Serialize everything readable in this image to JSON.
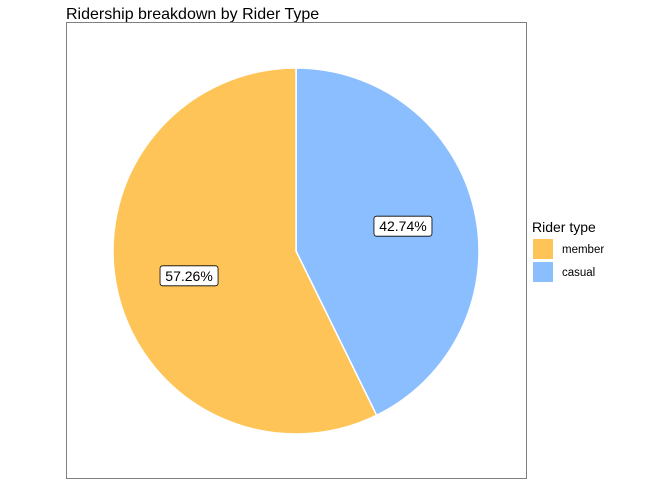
{
  "chart_data": {
    "type": "pie",
    "title": "Ridership breakdown by Rider Type",
    "legend": {
      "title": "Rider type",
      "placement": "right"
    },
    "slices": [
      {
        "label": "casual",
        "value": 42.74,
        "display": "42.74%",
        "color": "#8ABEFF"
      },
      {
        "label": "member",
        "value": 57.26,
        "display": "57.26%",
        "color": "#FFC457"
      }
    ],
    "legend_order": [
      "member",
      "casual"
    ]
  }
}
